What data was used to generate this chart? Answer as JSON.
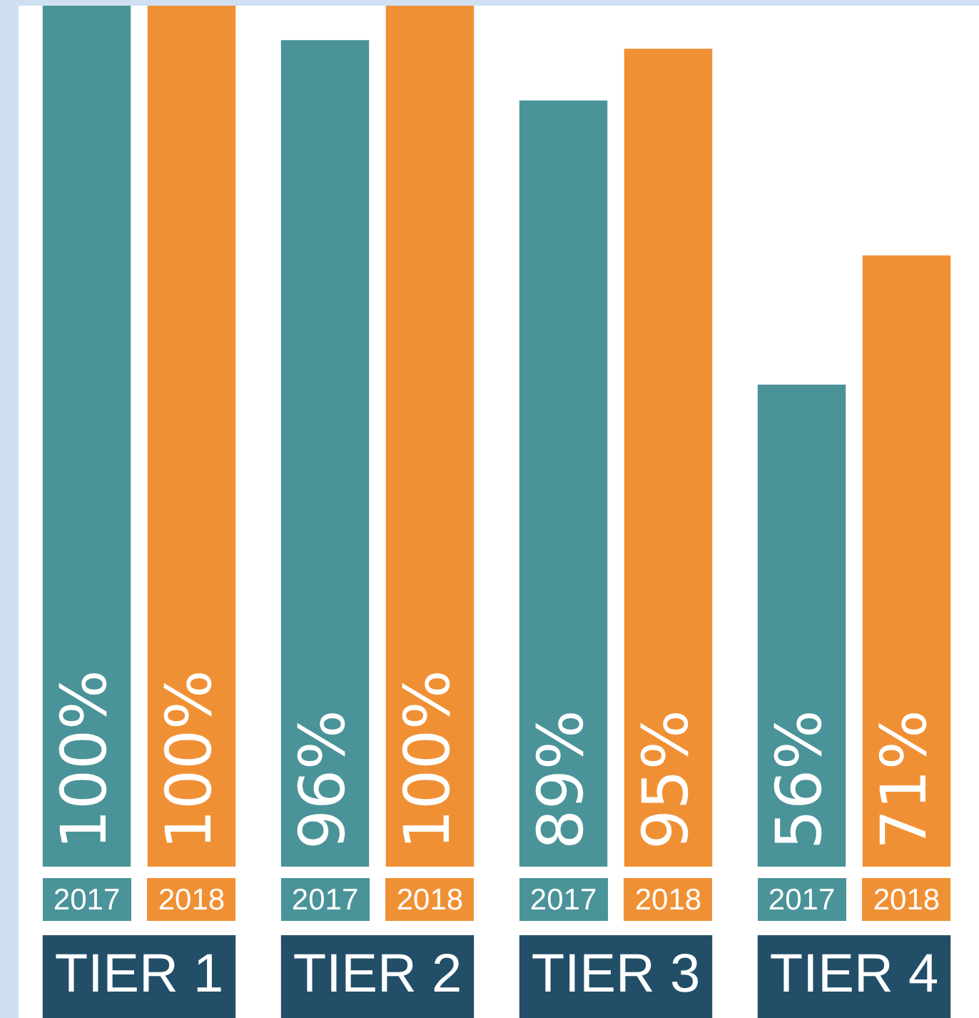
{
  "chart_data": {
    "type": "bar",
    "categories": [
      "TIER 1",
      "TIER 2",
      "TIER 3",
      "TIER 4"
    ],
    "series": [
      {
        "name": "2017",
        "color": "#4a9399",
        "values": [
          100,
          96,
          89,
          56
        ],
        "value_labels": [
          "100%",
          "96%",
          "89%",
          "56%"
        ]
      },
      {
        "name": "2018",
        "color": "#f09035",
        "values": [
          100,
          100,
          95,
          71
        ],
        "value_labels": [
          "100%",
          "100%",
          "95%",
          "71%"
        ]
      }
    ],
    "ylim": [
      0,
      100
    ],
    "tick_labels": "x",
    "legend": "bottom"
  }
}
